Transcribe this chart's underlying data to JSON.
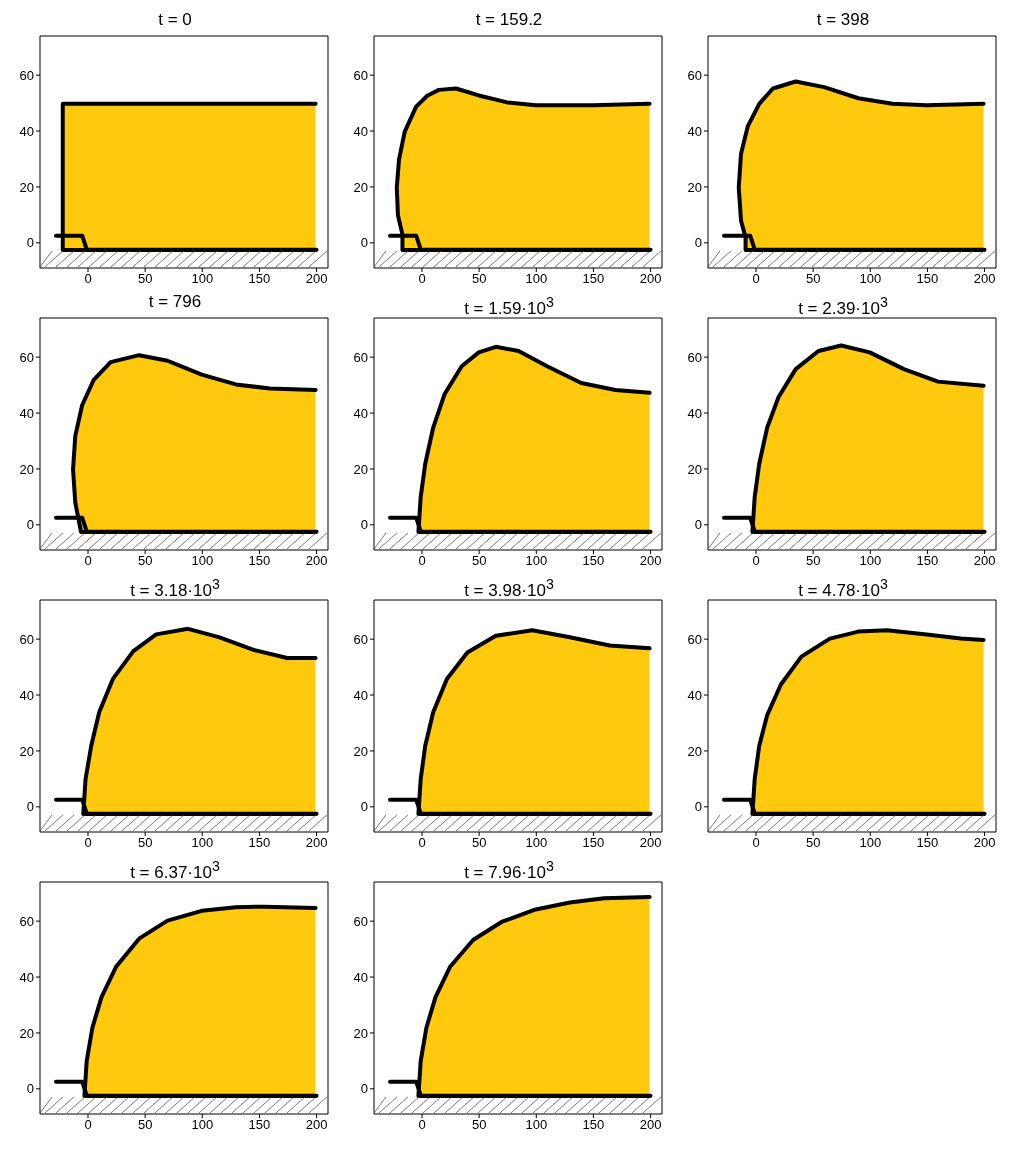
{
  "chart_data": [
    {
      "type": "line",
      "title": "t = 0",
      "xlim": [
        -42,
        210
      ],
      "xticks": [
        0,
        50,
        100,
        150,
        200
      ],
      "ylim": [
        -9,
        74
      ],
      "yticks": [
        0,
        20,
        40,
        60
      ],
      "series": [
        {
          "type": "area",
          "color": "#ffc90e",
          "x": [
            200,
            -22,
            -22,
            200
          ],
          "values": [
            -2.5,
            -2.5,
            50,
            50
          ]
        },
        {
          "type": "line",
          "color": "#000000",
          "x": [
            -28,
            -5,
            -1,
            200
          ],
          "values": [
            2.5,
            2.5,
            -2.5,
            -2.5
          ]
        }
      ]
    },
    {
      "type": "line",
      "title": "t = 159.2",
      "xlim": [
        -42,
        210
      ],
      "xticks": [
        0,
        50,
        100,
        150,
        200
      ],
      "ylim": [
        -9,
        74
      ],
      "yticks": [
        0,
        20,
        40,
        60
      ],
      "series": [
        {
          "type": "area",
          "color": "#ffc90e",
          "x": [
            200,
            -17,
            -17,
            -21,
            -22,
            -20,
            -15,
            -5,
            5,
            15,
            30,
            50,
            75,
            100,
            150,
            200
          ],
          "values": [
            -2.5,
            -2.5,
            3,
            10,
            20,
            30,
            40,
            49,
            53,
            55,
            55.5,
            53,
            50.5,
            49.5,
            49.5,
            50
          ]
        },
        {
          "type": "line",
          "color": "#000000",
          "x": [
            -28,
            -5,
            -1,
            200
          ],
          "values": [
            2.5,
            2.5,
            -2.5,
            -2.5
          ]
        }
      ]
    },
    {
      "type": "line",
      "title": "t = 398",
      "xlim": [
        -42,
        210
      ],
      "xticks": [
        0,
        50,
        100,
        150,
        200
      ],
      "ylim": [
        -9,
        74
      ],
      "yticks": [
        0,
        20,
        40,
        60
      ],
      "series": [
        {
          "type": "area",
          "color": "#ffc90e",
          "x": [
            200,
            -9,
            -9,
            -13,
            -15,
            -13,
            -7,
            3,
            15,
            35,
            60,
            90,
            120,
            150,
            200
          ],
          "values": [
            -2.5,
            -2.5,
            2,
            8,
            20,
            32,
            42,
            50,
            55.5,
            58,
            56,
            52,
            50,
            49.5,
            50
          ]
        },
        {
          "type": "line",
          "color": "#000000",
          "x": [
            -28,
            -5,
            -1,
            200
          ],
          "values": [
            2.5,
            2.5,
            -2.5,
            -2.5
          ]
        }
      ]
    },
    {
      "type": "line",
      "title": "t = 796",
      "xlim": [
        -42,
        210
      ],
      "xticks": [
        0,
        50,
        100,
        150,
        200
      ],
      "ylim": [
        -9,
        74
      ],
      "yticks": [
        0,
        20,
        40,
        60
      ],
      "series": [
        {
          "type": "area",
          "color": "#ffc90e",
          "x": [
            200,
            -6,
            -11,
            -13,
            -11,
            -5,
            5,
            20,
            45,
            70,
            100,
            130,
            160,
            200
          ],
          "values": [
            -2.5,
            -2.5,
            8,
            20,
            32,
            43,
            52,
            58.5,
            61,
            59,
            54,
            50.5,
            49,
            48.5
          ]
        },
        {
          "type": "line",
          "color": "#000000",
          "x": [
            -28,
            -5,
            -1,
            200
          ],
          "values": [
            2.5,
            2.5,
            -2.5,
            -2.5
          ]
        }
      ]
    },
    {
      "type": "line",
      "title": "t = 1.59·10$^{3}$",
      "xlim": [
        -42,
        210
      ],
      "xticks": [
        0,
        50,
        100,
        150,
        200
      ],
      "ylim": [
        -9,
        74
      ],
      "yticks": [
        0,
        20,
        40,
        60
      ],
      "series": [
        {
          "type": "area",
          "color": "#ffc90e",
          "x": [
            200,
            -3,
            -1,
            3,
            10,
            20,
            35,
            50,
            65,
            85,
            110,
            140,
            170,
            200
          ],
          "values": [
            -2.5,
            -2.5,
            10,
            22,
            35,
            47,
            57,
            62,
            64,
            62.5,
            57,
            51,
            48.5,
            47.5
          ]
        },
        {
          "type": "line",
          "color": "#000000",
          "x": [
            -28,
            -5,
            -1,
            200
          ],
          "values": [
            2.5,
            2.5,
            -2.5,
            -2.5
          ]
        }
      ]
    },
    {
      "type": "line",
      "title": "t = 2.39·10$^{3}$",
      "xlim": [
        -42,
        210
      ],
      "xticks": [
        0,
        50,
        100,
        150,
        200
      ],
      "ylim": [
        -9,
        74
      ],
      "yticks": [
        0,
        20,
        40,
        60
      ],
      "series": [
        {
          "type": "area",
          "color": "#ffc90e",
          "x": [
            200,
            -3,
            -1,
            3,
            10,
            20,
            35,
            55,
            75,
            100,
            130,
            160,
            200
          ],
          "values": [
            -2.5,
            -2.5,
            10,
            22,
            35,
            46,
            56,
            62.5,
            64.5,
            62,
            56,
            51.5,
            50
          ]
        },
        {
          "type": "line",
          "color": "#000000",
          "x": [
            -28,
            -5,
            -1,
            200
          ],
          "values": [
            2.5,
            2.5,
            -2.5,
            -2.5
          ]
        }
      ]
    },
    {
      "type": "line",
      "title": "t = 3.18·10$^{3}$",
      "xlim": [
        -42,
        210
      ],
      "xticks": [
        0,
        50,
        100,
        150,
        200
      ],
      "ylim": [
        -9,
        74
      ],
      "yticks": [
        0,
        20,
        40,
        60
      ],
      "series": [
        {
          "type": "area",
          "color": "#ffc90e",
          "x": [
            200,
            -4,
            -2,
            3,
            10,
            22,
            40,
            60,
            88,
            115,
            145,
            175,
            200
          ],
          "values": [
            -2.5,
            -2.5,
            10,
            22,
            34,
            46,
            56,
            62,
            64,
            61,
            56.5,
            53.5,
            53.5
          ]
        },
        {
          "type": "line",
          "color": "#000000",
          "x": [
            -28,
            -5,
            -1,
            200
          ],
          "values": [
            2.5,
            2.5,
            -2.5,
            -2.5
          ]
        }
      ]
    },
    {
      "type": "line",
      "title": "t = 3.98·10$^{3}$",
      "xlim": [
        -42,
        210
      ],
      "xticks": [
        0,
        50,
        100,
        150,
        200
      ],
      "ylim": [
        -9,
        74
      ],
      "yticks": [
        0,
        20,
        40,
        60
      ],
      "series": [
        {
          "type": "area",
          "color": "#ffc90e",
          "x": [
            200,
            -3,
            -1,
            3,
            10,
            22,
            40,
            65,
            97,
            130,
            165,
            200
          ],
          "values": [
            -2.5,
            -2.5,
            10,
            22,
            34,
            46,
            55.5,
            61.5,
            63.5,
            61,
            58,
            57
          ]
        },
        {
          "type": "line",
          "color": "#000000",
          "x": [
            -28,
            -5,
            -1,
            200
          ],
          "values": [
            2.5,
            2.5,
            -2.5,
            -2.5
          ]
        }
      ]
    },
    {
      "type": "line",
      "title": "t = 4.78·10$^{3}$",
      "xlim": [
        -42,
        210
      ],
      "xticks": [
        0,
        50,
        100,
        150,
        200
      ],
      "ylim": [
        -9,
        74
      ],
      "yticks": [
        0,
        20,
        40,
        60
      ],
      "series": [
        {
          "type": "area",
          "color": "#ffc90e",
          "x": [
            200,
            -3,
            -1,
            3,
            10,
            22,
            40,
            65,
            90,
            115,
            150,
            180,
            200
          ],
          "values": [
            -2.5,
            -2.5,
            10,
            22,
            33,
            44,
            54,
            60.5,
            63,
            63.5,
            62,
            60.5,
            60
          ]
        },
        {
          "type": "line",
          "color": "#000000",
          "x": [
            -28,
            -5,
            -1,
            200
          ],
          "values": [
            2.5,
            2.5,
            -2.5,
            -2.5
          ]
        }
      ]
    },
    {
      "type": "line",
      "title": "t = 6.37·10$^{3}$",
      "xlim": [
        -42,
        210
      ],
      "xticks": [
        0,
        50,
        100,
        150,
        200
      ],
      "ylim": [
        -9,
        74
      ],
      "yticks": [
        0,
        20,
        40,
        60
      ],
      "series": [
        {
          "type": "area",
          "color": "#ffc90e",
          "x": [
            200,
            -3,
            -1,
            4,
            12,
            25,
            45,
            70,
            100,
            130,
            155,
            200
          ],
          "values": [
            -2.5,
            -2.5,
            10,
            22,
            33,
            44,
            54,
            60.5,
            64,
            65.3,
            65.5,
            65
          ]
        },
        {
          "type": "line",
          "color": "#000000",
          "x": [
            -28,
            -5,
            -1,
            200
          ],
          "values": [
            2.5,
            2.5,
            -2.5,
            -2.5
          ]
        }
      ]
    },
    {
      "type": "line",
      "title": "t = 7.96·10$^{3}$",
      "xlim": [
        -42,
        210
      ],
      "xticks": [
        0,
        50,
        100,
        150,
        200
      ],
      "ylim": [
        -9,
        74
      ],
      "yticks": [
        0,
        20,
        40,
        60
      ],
      "series": [
        {
          "type": "area",
          "color": "#ffc90e",
          "x": [
            200,
            -3,
            -1,
            4,
            12,
            25,
            45,
            70,
            100,
            130,
            160,
            200
          ],
          "values": [
            -2.5,
            -2.5,
            10,
            22,
            33,
            44,
            53.5,
            60,
            64.5,
            67,
            68.5,
            69
          ]
        },
        {
          "type": "line",
          "color": "#000000",
          "x": [
            -28,
            -5,
            -1,
            200
          ],
          "values": [
            2.5,
            2.5,
            -2.5,
            -2.5
          ]
        }
      ]
    }
  ]
}
